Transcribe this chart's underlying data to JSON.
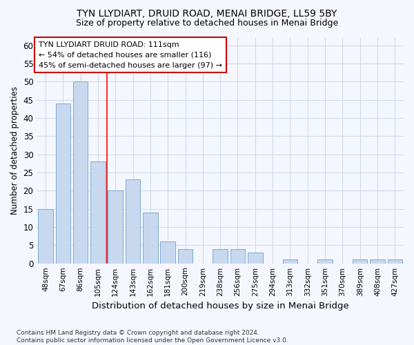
{
  "title": "TYN LLYDIART, DRUID ROAD, MENAI BRIDGE, LL59 5BY",
  "subtitle": "Size of property relative to detached houses in Menai Bridge",
  "xlabel": "Distribution of detached houses by size in Menai Bridge",
  "ylabel": "Number of detached properties",
  "categories": [
    "48sqm",
    "67sqm",
    "86sqm",
    "105sqm",
    "124sqm",
    "143sqm",
    "162sqm",
    "181sqm",
    "200sqm",
    "219sqm",
    "238sqm",
    "256sqm",
    "275sqm",
    "294sqm",
    "313sqm",
    "332sqm",
    "351sqm",
    "370sqm",
    "389sqm",
    "408sqm",
    "427sqm"
  ],
  "values": [
    15,
    44,
    50,
    28,
    20,
    23,
    14,
    6,
    4,
    0,
    4,
    4,
    3,
    0,
    1,
    0,
    1,
    0,
    1,
    1,
    1
  ],
  "bar_color": "#c8d8ee",
  "bar_edge_color": "#7aabce",
  "red_line_x": 3.5,
  "ylim": [
    0,
    62
  ],
  "yticks": [
    0,
    5,
    10,
    15,
    20,
    25,
    30,
    35,
    40,
    45,
    50,
    55,
    60
  ],
  "annotation_box_text": "TYN LLYDIART DRUID ROAD: 111sqm\n← 54% of detached houses are smaller (116)\n45% of semi-detached houses are larger (97) →",
  "annotation_box_color": "#ffffff",
  "annotation_box_edge_color": "#cc0000",
  "grid_color": "#d0daea",
  "footnote": "Contains HM Land Registry data © Crown copyright and database right 2024.\nContains public sector information licensed under the Open Government Licence v3.0.",
  "bg_color": "#f5f7ff"
}
